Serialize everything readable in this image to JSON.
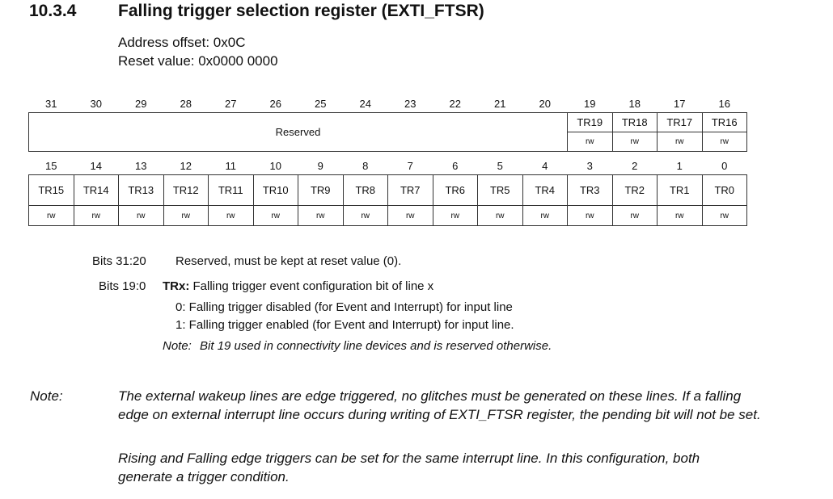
{
  "section": {
    "number": "10.3.4",
    "title": "Falling trigger selection register (EXTI_FTSR)",
    "address_offset": "Address offset: 0x0C",
    "reset_value": "Reset value: 0x0000 0000"
  },
  "register": {
    "upper_bits": [
      "31",
      "30",
      "29",
      "28",
      "27",
      "26",
      "25",
      "24",
      "23",
      "22",
      "21",
      "20",
      "19",
      "18",
      "17",
      "16"
    ],
    "reserved_label": "Reserved",
    "upper_fields": [
      "TR19",
      "TR18",
      "TR17",
      "TR16"
    ],
    "upper_access": [
      "rw",
      "rw",
      "rw",
      "rw"
    ],
    "lower_bits": [
      "15",
      "14",
      "13",
      "12",
      "11",
      "10",
      "9",
      "8",
      "7",
      "6",
      "5",
      "4",
      "3",
      "2",
      "1",
      "0"
    ],
    "lower_fields": [
      "TR15",
      "TR14",
      "TR13",
      "TR12",
      "TR11",
      "TR10",
      "TR9",
      "TR8",
      "TR7",
      "TR6",
      "TR5",
      "TR4",
      "TR3",
      "TR2",
      "TR1",
      "TR0"
    ],
    "lower_access": [
      "rw",
      "rw",
      "rw",
      "rw",
      "rw",
      "rw",
      "rw",
      "rw",
      "rw",
      "rw",
      "rw",
      "rw",
      "rw",
      "rw",
      "rw",
      "rw"
    ]
  },
  "descriptions": {
    "bits_31_20_label": "Bits 31:20",
    "bits_31_20_text": "Reserved, must be kept at reset value (0).",
    "bits_19_0_label": "Bits 19:0",
    "bits_19_0_name": "TRx:",
    "bits_19_0_text": "Falling trigger event configuration bit of line x",
    "value_0": "0: Falling trigger disabled (for Event and Interrupt) for input line",
    "value_1": "1: Falling trigger enabled (for Event and Interrupt) for input line.",
    "inline_note_label": "Note:",
    "inline_note_text": "Bit 19 used in connectivity line devices and is reserved otherwise."
  },
  "note": {
    "label": "Note:",
    "para1": "The external wakeup lines are edge triggered, no glitches must be generated on these lines. If a falling edge on external interrupt line occurs during writing of EXTI_FTSR register, the pending bit will not be set.",
    "para2": "Rising and Falling edge triggers can be set for the same interrupt line. In this configuration, both generate a trigger condition."
  }
}
